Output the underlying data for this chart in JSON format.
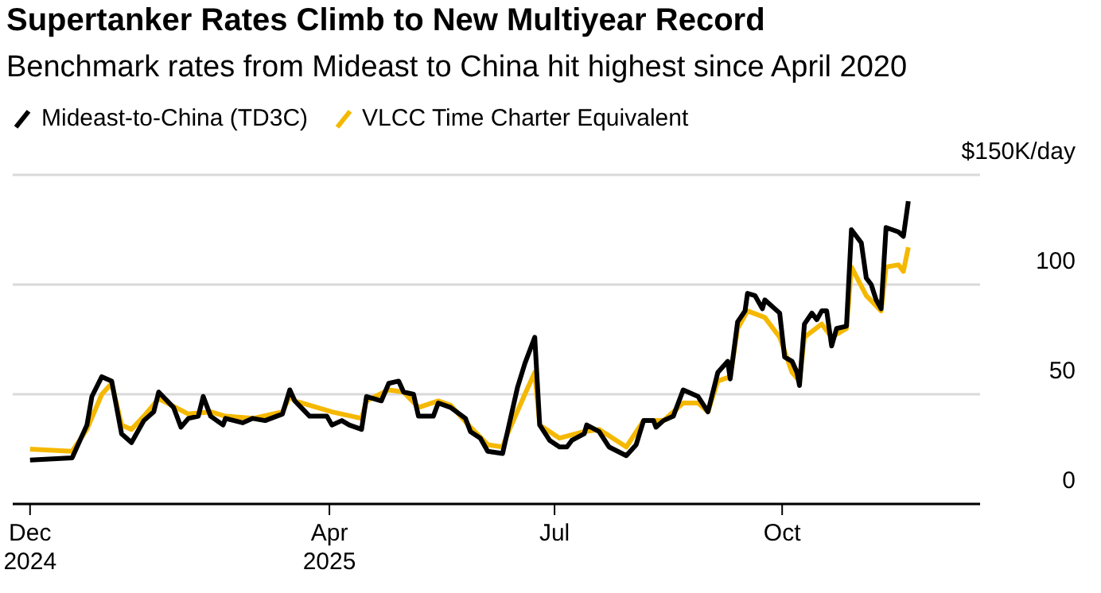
{
  "chart_data": {
    "type": "line",
    "title": "Supertanker Rates Climb to New Multiyear Record",
    "subtitle": "Benchmark rates from Mideast to China hit highest since April 2020",
    "ylim": [
      0,
      150
    ],
    "yticks": [
      0,
      50,
      100,
      {
        "value": 150,
        "label": "$150K/day"
      }
    ],
    "xlim": [
      "2024-11-24",
      "2025-12-20"
    ],
    "xticks": [
      {
        "value": "2024-12-01",
        "label": "Dec\n2024"
      },
      {
        "value": "2025-04-01",
        "label": "Apr\n2025"
      },
      {
        "value": "2025-07-01",
        "label": "Jul"
      },
      {
        "value": "2025-10-01",
        "label": "Oct"
      }
    ],
    "grid": "y",
    "legend": "top left",
    "marker": "none",
    "line_style": "solid",
    "series": [
      {
        "name": "VLCC Time Charter Equivalent",
        "color": "#f5b800",
        "x": [
          "2024-12-01",
          "2024-12-18",
          "2024-12-24",
          "2024-12-30",
          "2025-01-03",
          "2025-01-07",
          "2025-01-11",
          "2025-01-16",
          "2025-01-22",
          "2025-02-03",
          "2025-02-12",
          "2025-02-18",
          "2025-03-01",
          "2025-03-13",
          "2025-03-16",
          "2025-03-18",
          "2025-04-02",
          "2025-04-14",
          "2025-04-16",
          "2025-04-25",
          "2025-05-01",
          "2025-05-07",
          "2025-05-15",
          "2025-05-20",
          "2025-05-28",
          "2025-06-04",
          "2025-06-10",
          "2025-06-12",
          "2025-06-19",
          "2025-06-23",
          "2025-06-25",
          "2025-07-03",
          "2025-07-13",
          "2025-07-19",
          "2025-07-30",
          "2025-08-06",
          "2025-08-14",
          "2025-08-22",
          "2025-08-28",
          "2025-09-01",
          "2025-09-05",
          "2025-09-10",
          "2025-09-13",
          "2025-09-17",
          "2025-09-24",
          "2025-09-30",
          "2025-10-05",
          "2025-10-08",
          "2025-10-10",
          "2025-10-17",
          "2025-10-21",
          "2025-10-27",
          "2025-10-29",
          "2025-11-04",
          "2025-11-10",
          "2025-11-12",
          "2025-11-17",
          "2025-11-19",
          "2025-11-21"
        ],
        "values": [
          25,
          24,
          34,
          50,
          55,
          36,
          34,
          40,
          48,
          41,
          42,
          40,
          39,
          42,
          49,
          47,
          42,
          39,
          47,
          52,
          51,
          44,
          47,
          45,
          35,
          27,
          26,
          32,
          50,
          60,
          36,
          30,
          33,
          34,
          26,
          38,
          38,
          46,
          46,
          42,
          56,
          58,
          80,
          88,
          85,
          76,
          60,
          56,
          76,
          82,
          76,
          80,
          108,
          95,
          88,
          108,
          109,
          106,
          117
        ]
      },
      {
        "name": "Mideast-to-China (TD3C)",
        "color": "#000000",
        "x": [
          "2024-12-01",
          "2024-12-18",
          "2024-12-24",
          "2024-12-26",
          "2024-12-30",
          "2025-01-03",
          "2025-01-07",
          "2025-01-11",
          "2025-01-16",
          "2025-01-20",
          "2025-01-22",
          "2025-01-28",
          "2025-01-31",
          "2025-02-03",
          "2025-02-07",
          "2025-02-09",
          "2025-02-12",
          "2025-02-17",
          "2025-02-18",
          "2025-02-25",
          "2025-03-01",
          "2025-03-06",
          "2025-03-13",
          "2025-03-16",
          "2025-03-18",
          "2025-03-24",
          "2025-03-31",
          "2025-04-02",
          "2025-04-06",
          "2025-04-09",
          "2025-04-14",
          "2025-04-16",
          "2025-04-22",
          "2025-04-25",
          "2025-04-29",
          "2025-05-01",
          "2025-05-05",
          "2025-05-07",
          "2025-05-13",
          "2025-05-15",
          "2025-05-20",
          "2025-05-26",
          "2025-05-28",
          "2025-06-01",
          "2025-06-04",
          "2025-06-10",
          "2025-06-12",
          "2025-06-16",
          "2025-06-19",
          "2025-06-23",
          "2025-06-25",
          "2025-06-29",
          "2025-07-03",
          "2025-07-06",
          "2025-07-08",
          "2025-07-13",
          "2025-07-14",
          "2025-07-19",
          "2025-07-23",
          "2025-07-30",
          "2025-08-03",
          "2025-08-06",
          "2025-08-10",
          "2025-08-11",
          "2025-08-14",
          "2025-08-18",
          "2025-08-22",
          "2025-08-28",
          "2025-09-01",
          "2025-09-05",
          "2025-09-09",
          "2025-09-10",
          "2025-09-13",
          "2025-09-16",
          "2025-09-17",
          "2025-09-20",
          "2025-09-23",
          "2025-09-24",
          "2025-09-30",
          "2025-10-02",
          "2025-10-05",
          "2025-10-07",
          "2025-10-08",
          "2025-10-10",
          "2025-10-13",
          "2025-10-15",
          "2025-10-17",
          "2025-10-19",
          "2025-10-21",
          "2025-10-23",
          "2025-10-27",
          "2025-10-29",
          "2025-11-02",
          "2025-11-04",
          "2025-11-06",
          "2025-11-08",
          "2025-11-10",
          "2025-11-12",
          "2025-11-17",
          "2025-11-19",
          "2025-11-21"
        ],
        "values": [
          20,
          21,
          36,
          49,
          58,
          56,
          32,
          28,
          38,
          42,
          51,
          44,
          35,
          39,
          40,
          49,
          40,
          36,
          39,
          37,
          39,
          38,
          41,
          52,
          47,
          40,
          40,
          36,
          38,
          36,
          34,
          49,
          47,
          55,
          56,
          51,
          50,
          40,
          40,
          46,
          44,
          39,
          33,
          30,
          24,
          23,
          33,
          53,
          64,
          76,
          36,
          29,
          26,
          26,
          29,
          32,
          36,
          33,
          26,
          22,
          27,
          38,
          38,
          35,
          38,
          40,
          52,
          49,
          42,
          60,
          65,
          57,
          83,
          88,
          96,
          95,
          89,
          93,
          87,
          67,
          65,
          60,
          54,
          82,
          87,
          84,
          88,
          88,
          72,
          80,
          81,
          125,
          119,
          103,
          100,
          93,
          89,
          126,
          124,
          122,
          138
        ]
      }
    ]
  }
}
